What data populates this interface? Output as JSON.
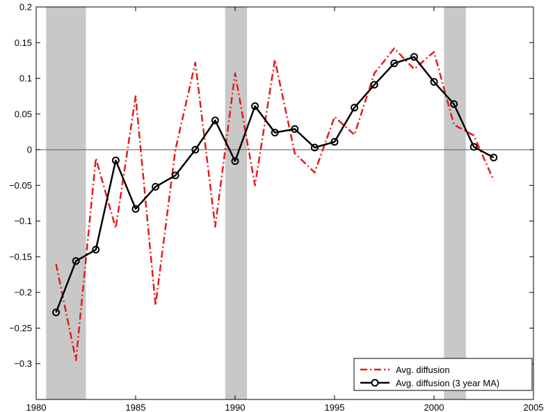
{
  "chart_data": {
    "type": "line",
    "title": "",
    "xlabel": "",
    "ylabel": "",
    "xlim": [
      1980,
      2005
    ],
    "ylim": [
      -0.35,
      0.2
    ],
    "xticks": [
      1980,
      1985,
      1990,
      1995,
      2000,
      2005
    ],
    "xtick_labels": [
      "1980",
      "1985",
      "1990",
      "1995",
      "2000",
      "2005"
    ],
    "yticks": [
      0.2,
      0.15,
      0.1,
      0.05,
      0,
      -0.05,
      -0.1,
      -0.15,
      -0.2,
      -0.25,
      -0.3
    ],
    "ytick_labels": [
      "0.2",
      "0.15",
      "0.1",
      "0.05",
      "0",
      "−0.05",
      "−0.1",
      "−0.15",
      "−0.2",
      "−0.25",
      "−0.3"
    ],
    "zero_line": 0,
    "grid": false,
    "legend_position": "bottom-right",
    "recession_bands": [
      [
        1980.5,
        1982.5
      ],
      [
        1989.5,
        1990.6
      ],
      [
        2000.5,
        2001.6
      ]
    ],
    "series": [
      {
        "name": "Avg. diffusion",
        "style": "dash-dot",
        "color": "#e41a1c",
        "x": [
          1981,
          1982,
          1983,
          1984,
          1985,
          1986,
          1987,
          1988,
          1989,
          1990,
          1991,
          1992,
          1993,
          1994,
          1995,
          1996,
          1997,
          1998,
          1999,
          2000,
          2001,
          2002,
          2003
        ],
        "values": [
          -0.16,
          -0.295,
          -0.012,
          -0.11,
          0.075,
          -0.218,
          0.0,
          0.122,
          -0.108,
          0.107,
          -0.05,
          0.126,
          -0.005,
          -0.032,
          0.046,
          0.021,
          0.107,
          0.142,
          0.113,
          0.137,
          0.035,
          0.02,
          -0.043
        ]
      },
      {
        "name": "Avg. diffusion (3 year MA)",
        "style": "solid-circle",
        "color": "#000000",
        "x": [
          1981,
          1982,
          1983,
          1984,
          1985,
          1986,
          1987,
          1988,
          1989,
          1990,
          1991,
          1992,
          1993,
          1994,
          1995,
          1996,
          1997,
          1998,
          1999,
          2000,
          2001,
          2002,
          2003
        ],
        "values": [
          -0.228,
          -0.156,
          -0.14,
          -0.015,
          -0.083,
          -0.052,
          -0.036,
          0.0,
          0.041,
          -0.016,
          0.061,
          0.024,
          0.029,
          0.003,
          0.011,
          0.059,
          0.091,
          0.121,
          0.13,
          0.095,
          0.064,
          0.004,
          -0.011
        ]
      }
    ]
  }
}
